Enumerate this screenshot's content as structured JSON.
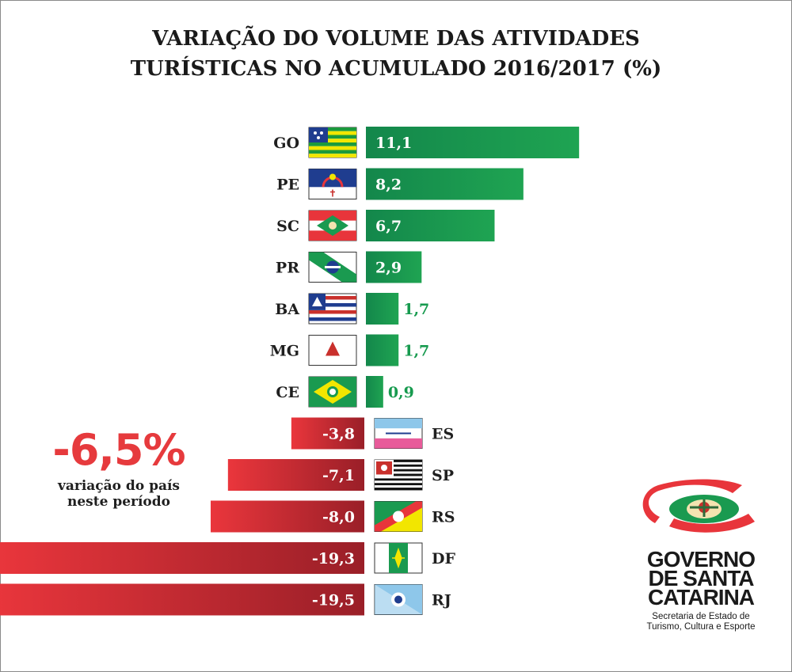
{
  "chart_data": {
    "type": "bar",
    "title_lines": [
      "VARIAÇÃO DO VOLUME DAS ATIVIDADES",
      "TURÍSTICAS NO ACUMULADO 2016/2017 (%)"
    ],
    "categories": [
      "GO",
      "PE",
      "SC",
      "PR",
      "BA",
      "MG",
      "CE",
      "ES",
      "SP",
      "RS",
      "DF",
      "RJ"
    ],
    "values": [
      11.1,
      8.2,
      6.7,
      2.9,
      1.7,
      1.7,
      0.9,
      -3.8,
      -7.1,
      -8.0,
      -19.3,
      -19.5
    ],
    "value_labels": [
      "11,1",
      "8,2",
      "6,7",
      "2,9",
      "1,7",
      "1,7",
      "0,9",
      "-3,8",
      "-7,1",
      "-8,0",
      "-19,3",
      "-19,5"
    ],
    "orientation": "horizontal",
    "grid": false,
    "colors": {
      "positive": "#13884c",
      "positive_light": "#20a552",
      "negative": "#e8353b",
      "negative_dark": "#9b2028",
      "positive_outside_label": "#169a4e"
    }
  },
  "country": {
    "value": "-6,5%",
    "note_lines": [
      "variação do país",
      "neste período"
    ]
  },
  "logo": {
    "lines": [
      "GOVERNO",
      "DE SANTA",
      "CATARINA"
    ],
    "sub_lines": [
      "Secretaria de Estado de",
      "Turismo, Cultura e Esporte"
    ],
    "icon": "santa-catarina-coat-of-arms-icon"
  },
  "flags": {
    "GO": "goias-flag-icon",
    "PE": "pernambuco-flag-icon",
    "SC": "santa-catarina-flag-icon",
    "PR": "parana-flag-icon",
    "BA": "bahia-flag-icon",
    "MG": "minas-gerais-flag-icon",
    "CE": "ceara-flag-icon",
    "ES": "espirito-santo-flag-icon",
    "SP": "sao-paulo-flag-icon",
    "RS": "rio-grande-do-sul-flag-icon",
    "DF": "distrito-federal-flag-icon",
    "RJ": "rio-de-janeiro-flag-icon"
  }
}
